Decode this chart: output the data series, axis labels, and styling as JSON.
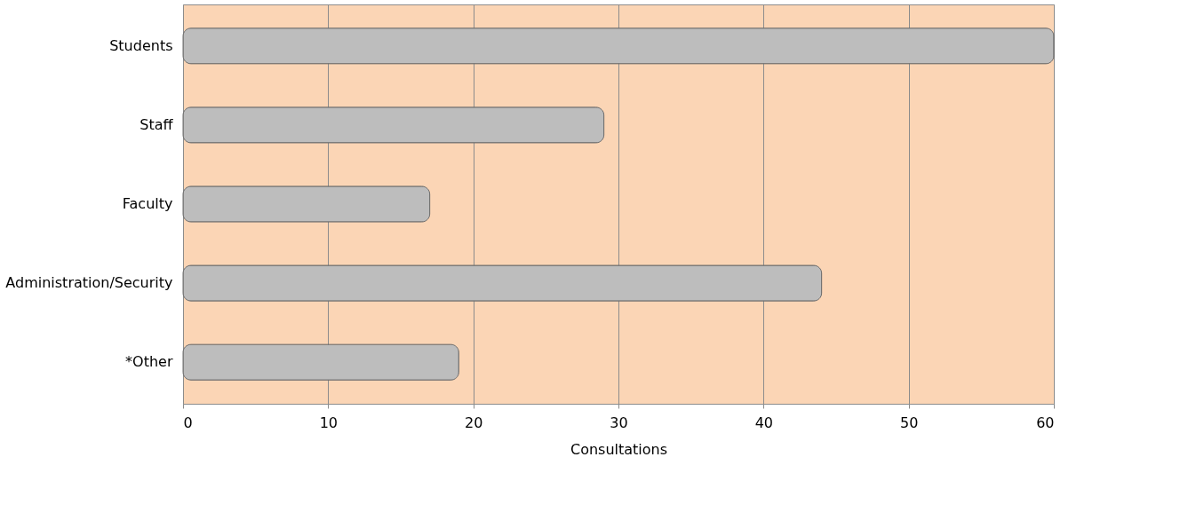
{
  "chart_data": {
    "type": "bar",
    "orientation": "horizontal",
    "xlabel": "Consultations",
    "categories": [
      "Students",
      "Staff",
      "Faculty",
      "Administration/Security",
      "*Other"
    ],
    "values": [
      60,
      29,
      17,
      44,
      19
    ],
    "color": "#bdbdbd",
    "xlim": [
      0,
      60
    ],
    "xticks": [
      0,
      10,
      20,
      30,
      40,
      50,
      60
    ],
    "grid": "x"
  }
}
